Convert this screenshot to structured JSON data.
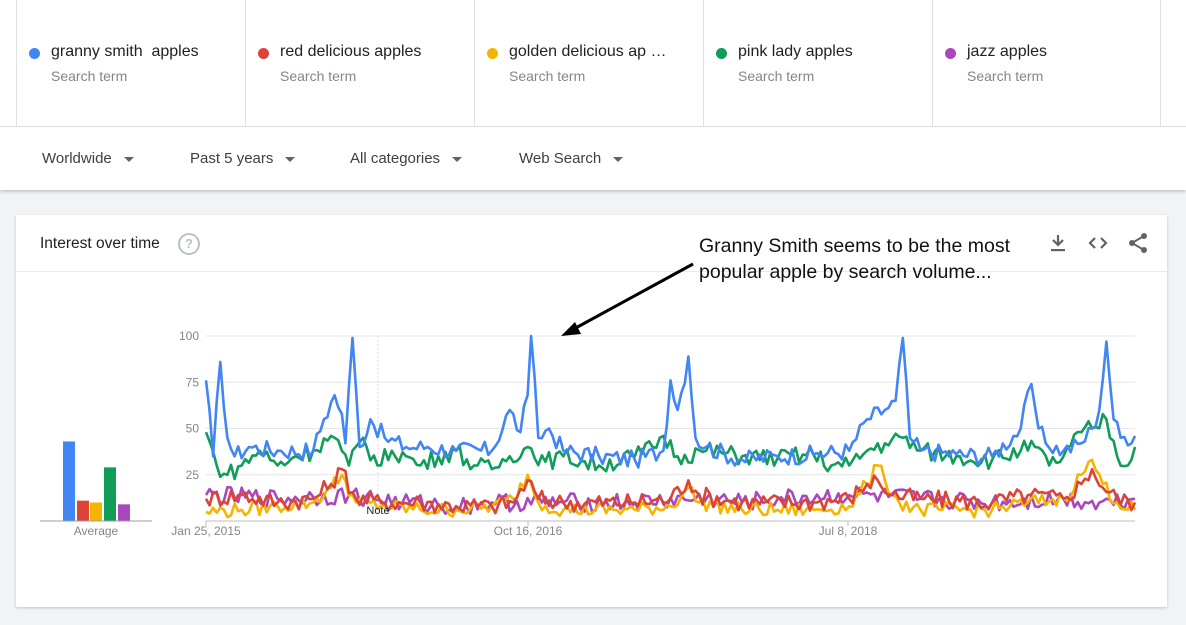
{
  "terms": [
    {
      "name": "granny smith  apples",
      "sub": "Search term",
      "color": "#4285f4"
    },
    {
      "name": "red delicious apples",
      "sub": "Search term",
      "color": "#db4437"
    },
    {
      "name": "golden delicious ap …",
      "sub": "Search term",
      "color": "#f4b400"
    },
    {
      "name": "pink lady apples",
      "sub": "Search term",
      "color": "#0f9d58"
    },
    {
      "name": "jazz apples",
      "sub": "Search term",
      "color": "#ab47bc"
    }
  ],
  "filters": {
    "region": "Worldwide",
    "time": "Past 5 years",
    "category": "All categories",
    "property": "Web Search"
  },
  "card": {
    "title": "Interest over time",
    "help": "?",
    "annotation_line1": "Granny Smith seems to be the most",
    "annotation_line2": "popular apple by search volume..."
  },
  "icons": {
    "download": "download-icon",
    "embed": "embed-code-icon",
    "share": "share-icon"
  },
  "chart_data": {
    "type": "line",
    "y_ticks": [
      "100",
      "75",
      "50",
      "25"
    ],
    "ylim": [
      0,
      100
    ],
    "x_tick_labels": [
      "Jan 25, 2015",
      "Oct 16, 2016",
      "Jul 8, 2018"
    ],
    "note_label": "Note",
    "average_label": "Average",
    "averages": [
      {
        "series": "granny smith  apples",
        "value": 43,
        "color": "#4285f4"
      },
      {
        "series": "red delicious apples",
        "value": 11,
        "color": "#db4437"
      },
      {
        "series": "golden delicious ap …",
        "value": 10,
        "color": "#f4b400"
      },
      {
        "series": "pink lady apples",
        "value": 29,
        "color": "#0f9d58"
      },
      {
        "series": "jazz apples",
        "value": 9,
        "color": "#ab47bc"
      }
    ],
    "series": [
      {
        "name": "granny smith  apples",
        "color": "#4285f4",
        "anchors": [
          [
            0,
            76
          ],
          [
            2,
            35
          ],
          [
            4,
            86
          ],
          [
            6,
            45
          ],
          [
            8,
            35
          ],
          [
            12,
            40
          ],
          [
            20,
            38
          ],
          [
            30,
            38
          ],
          [
            33,
            55
          ],
          [
            36,
            68
          ],
          [
            38,
            58
          ],
          [
            39,
            42
          ],
          [
            41,
            99
          ],
          [
            43,
            40
          ],
          [
            46,
            55
          ],
          [
            50,
            45
          ],
          [
            56,
            40
          ],
          [
            62,
            40
          ],
          [
            70,
            38
          ],
          [
            80,
            38
          ],
          [
            85,
            60
          ],
          [
            88,
            48
          ],
          [
            90,
            68
          ],
          [
            91,
            100
          ],
          [
            93,
            45
          ],
          [
            96,
            50
          ],
          [
            100,
            38
          ],
          [
            110,
            35
          ],
          [
            120,
            33
          ],
          [
            128,
            38
          ],
          [
            130,
            76
          ],
          [
            132,
            60
          ],
          [
            135,
            89
          ],
          [
            137,
            45
          ],
          [
            140,
            40
          ],
          [
            150,
            33
          ],
          [
            160,
            35
          ],
          [
            170,
            36
          ],
          [
            180,
            38
          ],
          [
            185,
            55
          ],
          [
            190,
            60
          ],
          [
            193,
            65
          ],
          [
            195,
            99
          ],
          [
            197,
            45
          ],
          [
            200,
            38
          ],
          [
            210,
            36
          ],
          [
            220,
            35
          ],
          [
            228,
            50
          ],
          [
            231,
            74
          ],
          [
            233,
            50
          ],
          [
            235,
            42
          ],
          [
            240,
            38
          ],
          [
            245,
            42
          ],
          [
            248,
            50
          ],
          [
            250,
            60
          ],
          [
            252,
            97
          ],
          [
            254,
            55
          ],
          [
            256,
            45
          ],
          [
            260,
            46
          ]
        ]
      },
      {
        "name": "red delicious apples",
        "color": "#db4437",
        "anchors": [
          [
            0,
            12
          ],
          [
            10,
            14
          ],
          [
            20,
            10
          ],
          [
            30,
            12
          ],
          [
            35,
            20
          ],
          [
            38,
            28
          ],
          [
            42,
            12
          ],
          [
            50,
            10
          ],
          [
            60,
            10
          ],
          [
            70,
            8
          ],
          [
            80,
            8
          ],
          [
            86,
            10
          ],
          [
            90,
            22
          ],
          [
            93,
            12
          ],
          [
            100,
            10
          ],
          [
            120,
            10
          ],
          [
            130,
            12
          ],
          [
            135,
            22
          ],
          [
            138,
            14
          ],
          [
            150,
            10
          ],
          [
            170,
            10
          ],
          [
            180,
            12
          ],
          [
            185,
            20
          ],
          [
            188,
            22
          ],
          [
            192,
            14
          ],
          [
            200,
            12
          ],
          [
            220,
            10
          ],
          [
            230,
            14
          ],
          [
            240,
            12
          ],
          [
            245,
            20
          ],
          [
            248,
            28
          ],
          [
            251,
            18
          ],
          [
            255,
            12
          ],
          [
            260,
            10
          ]
        ]
      },
      {
        "name": "golden delicious ap …",
        "color": "#f4b400",
        "anchors": [
          [
            0,
            5
          ],
          [
            10,
            6
          ],
          [
            20,
            8
          ],
          [
            30,
            10
          ],
          [
            35,
            18
          ],
          [
            38,
            25
          ],
          [
            42,
            10
          ],
          [
            50,
            8
          ],
          [
            60,
            6
          ],
          [
            70,
            6
          ],
          [
            80,
            8
          ],
          [
            86,
            12
          ],
          [
            90,
            25
          ],
          [
            93,
            10
          ],
          [
            100,
            6
          ],
          [
            120,
            6
          ],
          [
            130,
            8
          ],
          [
            135,
            18
          ],
          [
            138,
            10
          ],
          [
            150,
            6
          ],
          [
            170,
            6
          ],
          [
            180,
            8
          ],
          [
            185,
            20
          ],
          [
            188,
            30
          ],
          [
            190,
            22
          ],
          [
            194,
            10
          ],
          [
            200,
            6
          ],
          [
            220,
            6
          ],
          [
            230,
            10
          ],
          [
            240,
            12
          ],
          [
            245,
            25
          ],
          [
            248,
            33
          ],
          [
            251,
            20
          ],
          [
            255,
            10
          ],
          [
            260,
            6
          ]
        ]
      },
      {
        "name": "pink lady apples",
        "color": "#0f9d58",
        "anchors": [
          [
            0,
            48
          ],
          [
            3,
            30
          ],
          [
            6,
            25
          ],
          [
            10,
            30
          ],
          [
            15,
            38
          ],
          [
            20,
            30
          ],
          [
            25,
            35
          ],
          [
            30,
            38
          ],
          [
            35,
            46
          ],
          [
            38,
            38
          ],
          [
            40,
            30
          ],
          [
            44,
            45
          ],
          [
            48,
            30
          ],
          [
            52,
            38
          ],
          [
            56,
            35
          ],
          [
            60,
            30
          ],
          [
            65,
            35
          ],
          [
            70,
            38
          ],
          [
            75,
            30
          ],
          [
            80,
            28
          ],
          [
            85,
            35
          ],
          [
            90,
            40
          ],
          [
            95,
            32
          ],
          [
            100,
            35
          ],
          [
            110,
            30
          ],
          [
            120,
            35
          ],
          [
            125,
            40
          ],
          [
            128,
            46
          ],
          [
            132,
            35
          ],
          [
            140,
            38
          ],
          [
            150,
            35
          ],
          [
            160,
            34
          ],
          [
            170,
            36
          ],
          [
            175,
            30
          ],
          [
            180,
            30
          ],
          [
            185,
            38
          ],
          [
            190,
            42
          ],
          [
            195,
            45
          ],
          [
            200,
            38
          ],
          [
            210,
            35
          ],
          [
            220,
            33
          ],
          [
            228,
            38
          ],
          [
            232,
            40
          ],
          [
            236,
            30
          ],
          [
            240,
            35
          ],
          [
            245,
            48
          ],
          [
            248,
            50
          ],
          [
            252,
            55
          ],
          [
            255,
            35
          ],
          [
            258,
            30
          ],
          [
            260,
            40
          ]
        ]
      },
      {
        "name": "jazz apples",
        "color": "#ab47bc",
        "anchors": [
          [
            0,
            14
          ],
          [
            20,
            12
          ],
          [
            40,
            14
          ],
          [
            55,
            10
          ],
          [
            70,
            8
          ],
          [
            80,
            10
          ],
          [
            100,
            10
          ],
          [
            120,
            10
          ],
          [
            140,
            12
          ],
          [
            150,
            10
          ],
          [
            160,
            12
          ],
          [
            180,
            14
          ],
          [
            200,
            12
          ],
          [
            220,
            10
          ],
          [
            240,
            12
          ],
          [
            250,
            10
          ],
          [
            260,
            12
          ]
        ]
      }
    ]
  }
}
